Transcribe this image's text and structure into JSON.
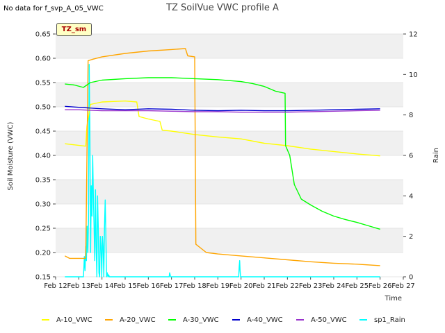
{
  "header": {
    "no_data_note": "No data for f_svp_A_05_VWC",
    "site_badge": "TZ_sm"
  },
  "chart_data": {
    "type": "line",
    "title": "TZ SoilVue VWC profile A",
    "xlabel": "Time",
    "ylabel": "Soil Moisture (VWC)",
    "y2label": "Rain",
    "xlim": [
      "Feb 12",
      "Feb 27"
    ],
    "ylim": [
      0.15,
      0.65
    ],
    "y2lim": [
      0,
      12
    ],
    "x_ticks": [
      "Feb 12",
      "Feb 13",
      "Feb 14",
      "Feb 15",
      "Feb 16",
      "Feb 17",
      "Feb 18",
      "Feb 19",
      "Feb 20",
      "Feb 21",
      "Feb 22",
      "Feb 23",
      "Feb 24",
      "Feb 25",
      "Feb 26",
      "Feb 27"
    ],
    "y_ticks": [
      "0.15",
      "0.20",
      "0.25",
      "0.30",
      "0.35",
      "0.40",
      "0.45",
      "0.50",
      "0.55",
      "0.60",
      "0.65"
    ],
    "y2_ticks": [
      "0",
      "2",
      "4",
      "6",
      "8",
      "10",
      "12"
    ],
    "grid": "horizontal bands",
    "legend_position": "bottom",
    "series": [
      {
        "name": "A-10_VWC",
        "axis": "left",
        "color": "#ffff00",
        "x": [
          12.4,
          13.3,
          13.35,
          13.5,
          14.0,
          15.0,
          15.5,
          15.6,
          16.0,
          16.5,
          16.6,
          17.0,
          18.0,
          19.0,
          20.0,
          21.0,
          22.0,
          23.0,
          24.0,
          25.0,
          26.0
        ],
        "y": [
          0.424,
          0.419,
          0.46,
          0.505,
          0.51,
          0.512,
          0.51,
          0.48,
          0.475,
          0.47,
          0.452,
          0.45,
          0.443,
          0.438,
          0.434,
          0.425,
          0.42,
          0.413,
          0.408,
          0.403,
          0.399
        ]
      },
      {
        "name": "A-20_VWC",
        "axis": "left",
        "color": "#ffa500",
        "x": [
          12.4,
          12.6,
          13.3,
          13.4,
          13.6,
          14.0,
          15.0,
          16.0,
          17.0,
          17.6,
          17.7,
          18.0,
          18.05,
          18.5,
          19.0,
          20.0,
          21.0,
          22.0,
          23.0,
          24.0,
          25.0,
          26.0
        ],
        "y": [
          0.193,
          0.188,
          0.188,
          0.595,
          0.598,
          0.603,
          0.61,
          0.615,
          0.618,
          0.62,
          0.605,
          0.603,
          0.217,
          0.2,
          0.197,
          0.193,
          0.189,
          0.185,
          0.181,
          0.178,
          0.176,
          0.173
        ]
      },
      {
        "name": "A-30_VWC",
        "axis": "left",
        "color": "#00ff00",
        "x": [
          12.4,
          12.8,
          13.2,
          13.5,
          14.0,
          15.0,
          16.0,
          17.0,
          18.0,
          19.0,
          20.0,
          20.5,
          21.0,
          21.5,
          21.9,
          21.92,
          22.1,
          22.3,
          22.6,
          23.0,
          23.5,
          24.0,
          24.5,
          25.0,
          25.5,
          26.0
        ],
        "y": [
          0.547,
          0.545,
          0.54,
          0.55,
          0.555,
          0.558,
          0.56,
          0.56,
          0.558,
          0.556,
          0.552,
          0.548,
          0.542,
          0.532,
          0.528,
          0.42,
          0.4,
          0.34,
          0.31,
          0.298,
          0.285,
          0.275,
          0.268,
          0.262,
          0.255,
          0.248
        ]
      },
      {
        "name": "A-40_VWC",
        "axis": "left",
        "color": "#0000cd",
        "x": [
          12.4,
          13.0,
          14.0,
          15.0,
          16.0,
          17.0,
          18.0,
          19.0,
          20.0,
          21.0,
          22.0,
          23.0,
          24.0,
          25.0,
          26.0
        ],
        "y": [
          0.501,
          0.499,
          0.496,
          0.494,
          0.496,
          0.495,
          0.493,
          0.492,
          0.493,
          0.492,
          0.492,
          0.493,
          0.494,
          0.495,
          0.496
        ]
      },
      {
        "name": "A-50_VWC",
        "axis": "left",
        "color": "#9932cc",
        "x": [
          12.4,
          13.0,
          14.0,
          15.0,
          16.0,
          17.0,
          18.0,
          19.0,
          20.0,
          21.0,
          22.0,
          23.0,
          24.0,
          25.0,
          26.0
        ],
        "y": [
          0.494,
          0.494,
          0.492,
          0.492,
          0.492,
          0.491,
          0.49,
          0.49,
          0.489,
          0.489,
          0.489,
          0.49,
          0.491,
          0.492,
          0.493
        ]
      },
      {
        "name": "sp1_Rain",
        "axis": "right",
        "color": "#00ffff",
        "x": [
          12.4,
          13.2,
          13.22,
          13.24,
          13.27,
          13.3,
          13.33,
          13.36,
          13.39,
          13.42,
          13.45,
          13.48,
          13.51,
          13.54,
          13.57,
          13.6,
          13.63,
          13.66,
          13.69,
          13.72,
          13.75,
          13.78,
          13.81,
          13.84,
          13.87,
          13.9,
          13.93,
          13.96,
          13.99,
          14.02,
          14.05,
          14.08,
          14.11,
          14.14,
          14.17,
          14.2,
          14.23,
          14.26,
          14.29,
          14.32,
          14.35,
          14.38,
          14.41,
          14.44,
          14.5,
          16.9,
          16.92,
          16.94,
          16.96,
          19.9,
          19.92,
          19.94,
          19.96,
          19.98,
          20.0,
          26.0
        ],
        "y": [
          0,
          0,
          0.5,
          1.0,
          0.3,
          1.5,
          0.8,
          2.5,
          1.2,
          2.8,
          10.5,
          7.0,
          1.2,
          4.5,
          3.0,
          6.0,
          4.0,
          2.5,
          0.8,
          4.3,
          1.5,
          0,
          4.0,
          2.5,
          0.2,
          0,
          2.0,
          1.5,
          0,
          2.0,
          1.5,
          0,
          2.5,
          3.8,
          2.0,
          0,
          0.2,
          0,
          0.1,
          0,
          0,
          0,
          0,
          0,
          0,
          0,
          0.2,
          0.1,
          0,
          0,
          0.5,
          0.8,
          0.3,
          0,
          0,
          0
        ]
      }
    ]
  }
}
